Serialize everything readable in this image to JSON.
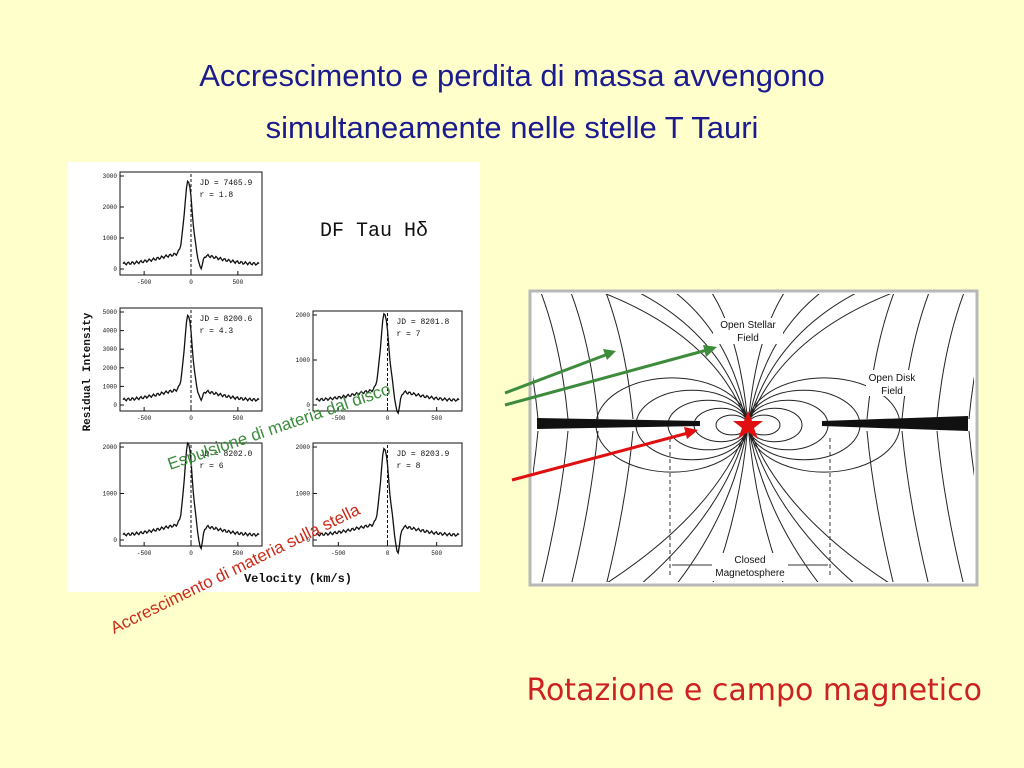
{
  "title": [
    "Accrescimento e perdita di massa avvengono",
    "simultaneamente nelle stelle T Tauri"
  ],
  "spectra_figure": {
    "label": "DF Tau Hδ",
    "y_axis_label": "Residual Intensity",
    "x_axis_label": "Velocity (km/s)",
    "panels": [
      {
        "jd": "JD = 7465.9",
        "r": "r = 1.8",
        "yticks": [
          0,
          1000,
          2000,
          3000
        ],
        "xticks": [
          -500,
          0,
          500
        ]
      },
      {
        "jd": "JD = 8200.6",
        "r": "r = 4.3",
        "yticks": [
          0,
          1000,
          2000,
          3000,
          4000,
          5000
        ],
        "xticks": [
          -500,
          0,
          500
        ]
      },
      {
        "jd": "JD = 8201.8",
        "r": "r = 7",
        "yticks": [
          0,
          1000,
          2000
        ],
        "xticks": [
          -500,
          0,
          500
        ]
      },
      {
        "jd": "JD = 8202.0",
        "r": "r = 6",
        "yticks": [
          0,
          1000,
          2000
        ],
        "xticks": [
          -500,
          0,
          500
        ]
      },
      {
        "jd": "JD = 8203.9",
        "r": "r = 8",
        "yticks": [
          0,
          1000,
          2000
        ],
        "xticks": [
          -500,
          0,
          500
        ]
      }
    ]
  },
  "magnetosphere_figure": {
    "open_stellar_field": [
      "Open Stellar",
      "Field"
    ],
    "open_disk_field": [
      "Open Disk",
      "Field"
    ],
    "closed_magnetosphere": [
      "Closed",
      "Magnetosphere"
    ]
  },
  "annotations": {
    "ejection": "Espulsione di materia dal disco",
    "accretion": "Accrescimento di materia sulla stella"
  },
  "caption": "Rotazione e campo magnetico"
}
